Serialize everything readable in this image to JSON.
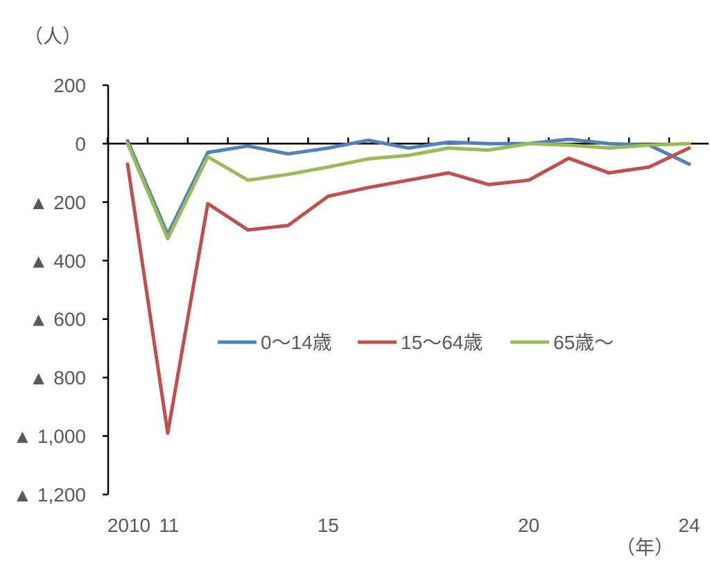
{
  "chart_data": {
    "type": "line",
    "y_unit_label": "（人）",
    "x_unit_label": "（年）",
    "x": [
      2010,
      2011,
      2012,
      2013,
      2014,
      2015,
      2016,
      2017,
      2018,
      2019,
      2020,
      2021,
      2022,
      2023,
      2024
    ],
    "x_tick_labels": [
      {
        "x": 2010,
        "label": "2010"
      },
      {
        "x": 2011,
        "label": "11"
      },
      {
        "x": 2015,
        "label": "15"
      },
      {
        "x": 2020,
        "label": "20"
      },
      {
        "x": 2024,
        "label": "24"
      }
    ],
    "y_ticks": [
      {
        "value": 200,
        "label": "200"
      },
      {
        "value": 0,
        "label": "0"
      },
      {
        "value": -200,
        "label": "▲ 200"
      },
      {
        "value": -400,
        "label": "▲ 400"
      },
      {
        "value": -600,
        "label": "▲ 600"
      },
      {
        "value": -800,
        "label": "▲ 800"
      },
      {
        "value": -1000,
        "label": "▲ 1,000"
      },
      {
        "value": -1200,
        "label": "▲ 1,200"
      }
    ],
    "ylim": [
      -1200,
      200
    ],
    "grid": false,
    "legend_position": "center",
    "series": [
      {
        "name": "0～14歳",
        "color": "#4f81bd",
        "values": [
          10,
          -310,
          -30,
          -8,
          -35,
          -15,
          12,
          -15,
          5,
          0,
          0,
          15,
          0,
          -5,
          -70
        ]
      },
      {
        "name": "15～64歳",
        "color": "#c0504d",
        "values": [
          -70,
          -990,
          -205,
          -295,
          -280,
          -180,
          -150,
          -125,
          -100,
          -140,
          -125,
          -50,
          -100,
          -80,
          -15
        ]
      },
      {
        "name": "65歳～",
        "color": "#9bbb59",
        "values": [
          0,
          -325,
          -45,
          -125,
          -105,
          -80,
          -52,
          -40,
          -15,
          -22,
          0,
          -5,
          -15,
          -5,
          0
        ]
      }
    ]
  }
}
